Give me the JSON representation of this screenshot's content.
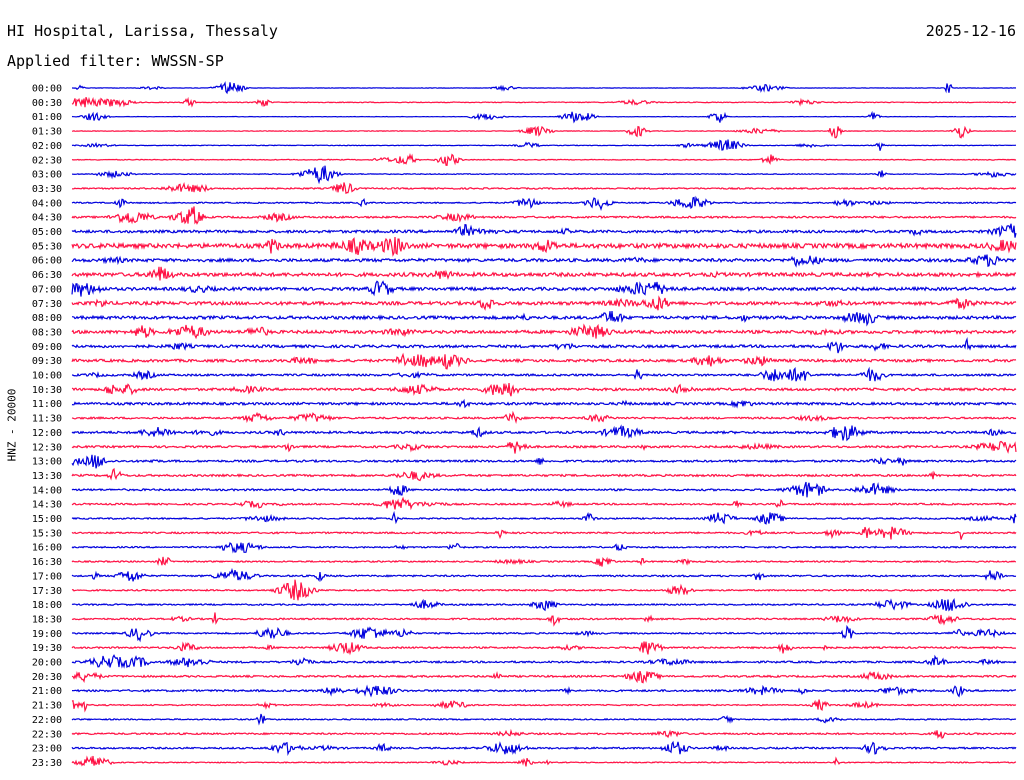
{
  "header": {
    "station": "HI Hospital, Larissa, Thessaly",
    "date": "2025-12-16",
    "filter": "Applied filter: WWSSN-SP"
  },
  "chart_data": {
    "type": "line",
    "ylabel": "HNZ - 20000",
    "colors": [
      "#0000dd",
      "#ff1144"
    ],
    "tick_labels": [
      "00:00",
      "00:30",
      "01:00",
      "01:30",
      "02:00",
      "02:30",
      "03:00",
      "03:30",
      "04:00",
      "04:30",
      "05:00",
      "05:30",
      "06:00",
      "06:30",
      "07:00",
      "07:30",
      "08:00",
      "08:30",
      "09:00",
      "09:30",
      "10:00",
      "10:30",
      "11:00",
      "11:30",
      "12:00",
      "12:30",
      "13:00",
      "13:30",
      "14:00",
      "14:30",
      "15:00",
      "15:30",
      "16:00",
      "16:30",
      "17:00",
      "17:30",
      "18:00",
      "18:30",
      "19:00",
      "19:30",
      "20:00",
      "20:30",
      "21:00",
      "21:30",
      "22:00",
      "22:30",
      "23:00",
      "23:30"
    ],
    "noise_level": [
      0.2,
      0.4,
      0.2,
      0.3,
      0.3,
      0.4,
      0.4,
      0.7,
      0.6,
      0.9,
      1.3,
      2.2,
      1.5,
      1.8,
      1.5,
      1.6,
      1.5,
      1.5,
      1.3,
      1.3,
      1.0,
      1.2,
      1.2,
      0.9,
      1.1,
      1.0,
      1.0,
      1.0,
      0.9,
      0.8,
      0.7,
      0.8,
      0.7,
      0.7,
      0.8,
      0.7,
      0.7,
      0.8,
      0.7,
      0.8,
      0.9,
      0.9,
      0.9,
      0.6,
      0.6,
      0.8,
      0.8,
      0.5
    ]
  }
}
